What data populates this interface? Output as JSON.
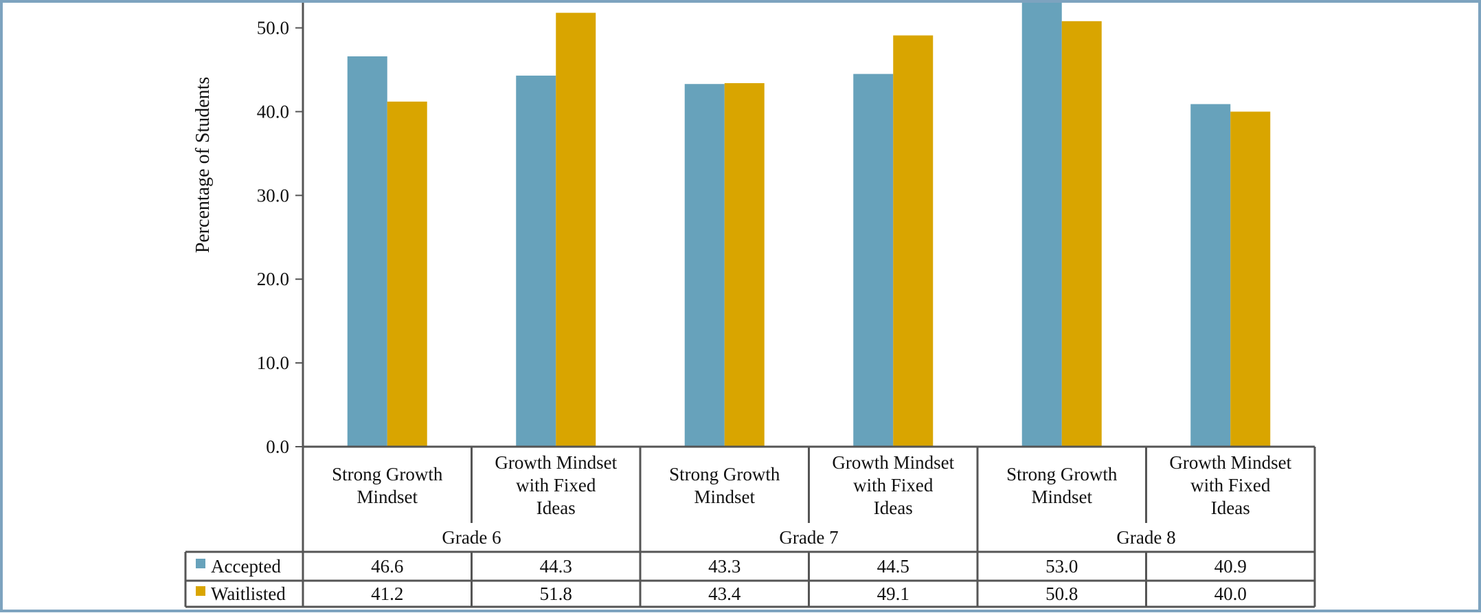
{
  "chart_data": {
    "type": "bar",
    "title": "",
    "xlabel": "",
    "ylabel": "Percentage of Students",
    "ylim": [
      0,
      53
    ],
    "yticks": [
      0,
      10,
      20,
      30,
      40,
      50
    ],
    "ytick_labels": [
      "0.0",
      "10.0",
      "20.0",
      "30.0",
      "40.0",
      "50.0"
    ],
    "grid": false,
    "legend": "table-rows-bottom-left",
    "groups": [
      {
        "label": "Grade 6",
        "categories": [
          [
            "Strong Growth",
            "Mindset"
          ],
          [
            "Growth Mindset",
            "with Fixed",
            "Ideas"
          ]
        ]
      },
      {
        "label": "Grade 7",
        "categories": [
          [
            "Strong Growth",
            "Mindset"
          ],
          [
            "Growth Mindset",
            "with Fixed",
            "Ideas"
          ]
        ]
      },
      {
        "label": "Grade 8",
        "categories": [
          [
            "Strong Growth",
            "Mindset"
          ],
          [
            "Growth Mindset",
            "with Fixed",
            "Ideas"
          ]
        ]
      }
    ],
    "series": [
      {
        "name": "Accepted",
        "color": "#67a2bb",
        "values": [
          46.6,
          44.3,
          43.3,
          44.5,
          53.0,
          40.9
        ]
      },
      {
        "name": "Waitlisted",
        "color": "#d9a500",
        "values": [
          41.2,
          51.8,
          43.4,
          49.1,
          50.8,
          40.0
        ]
      }
    ]
  }
}
